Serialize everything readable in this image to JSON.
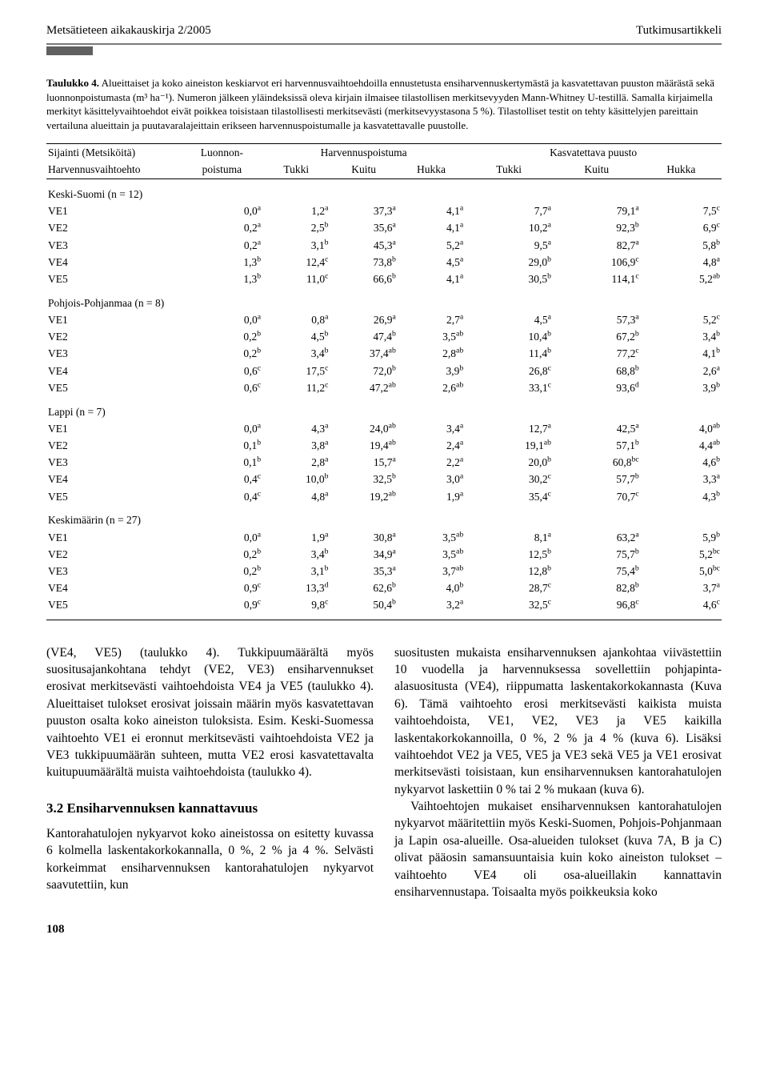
{
  "header": {
    "left": "Metsätieteen aikakauskirja 2/2005",
    "right": "Tutkimusartikkeli"
  },
  "caption": {
    "label": "Taulukko 4.",
    "text": "Alueittaiset ja koko aineiston keskiarvot eri harvennusvaihtoehdoilla ennustetusta ensiharvennuskertymästä ja kasvatettavan puuston määrästä sekä luonnonpoistumasta (m³ ha⁻¹). Numeron jälkeen yläindeksissä oleva kirjain ilmaisee tilastollisen merkitsevyyden Mann-Whitney U-testillä. Samalla kirjaimella merkityt käsittelyvaihtoehdot eivät poikkea toisistaan tilastollisesti merkitsevästi (merkitsevyystasona 5 %). Tilastolliset testit on tehty käsittelyjen pareittain vertailuna alueittain ja puutavaralajeittain erikseen harvennuspoistumalle ja kasvatettavalle puustolle."
  },
  "columns": {
    "h1a": "Sijainti (Metsiköitä)",
    "h1b": "Harvennusvaihtoehto",
    "h2a": "Luonnon-",
    "h2b": "poistuma",
    "group1": "Harvennuspoistuma",
    "group2": "Kasvatettava puusto",
    "sub1": "Tukki",
    "sub2": "Kuitu",
    "sub3": "Hukka",
    "sub4": "Tukki",
    "sub5": "Kuitu",
    "sub6": "Hukka"
  },
  "groups": [
    {
      "title": "Keski-Suomi (n = 12)",
      "rows": [
        {
          "ve": "VE1",
          "lp": [
            "0,0",
            "a"
          ],
          "c": [
            [
              "1,2",
              "a"
            ],
            [
              "37,3",
              "a"
            ],
            [
              "4,1",
              "a"
            ],
            [
              "7,7",
              "a"
            ],
            [
              "79,1",
              "a"
            ],
            [
              "7,5",
              "c"
            ]
          ]
        },
        {
          "ve": "VE2",
          "lp": [
            "0,2",
            "a"
          ],
          "c": [
            [
              "2,5",
              "b"
            ],
            [
              "35,6",
              "a"
            ],
            [
              "4,1",
              "a"
            ],
            [
              "10,2",
              "a"
            ],
            [
              "92,3",
              "b"
            ],
            [
              "6,9",
              "c"
            ]
          ]
        },
        {
          "ve": "VE3",
          "lp": [
            "0,2",
            "a"
          ],
          "c": [
            [
              "3,1",
              "b"
            ],
            [
              "45,3",
              "a"
            ],
            [
              "5,2",
              "a"
            ],
            [
              "9,5",
              "a"
            ],
            [
              "82,7",
              "a"
            ],
            [
              "5,8",
              "b"
            ]
          ]
        },
        {
          "ve": "VE4",
          "lp": [
            "1,3",
            "b"
          ],
          "c": [
            [
              "12,4",
              "c"
            ],
            [
              "73,8",
              "b"
            ],
            [
              "4,5",
              "a"
            ],
            [
              "29,0",
              "b"
            ],
            [
              "106,9",
              "c"
            ],
            [
              "4,8",
              "a"
            ]
          ]
        },
        {
          "ve": "VE5",
          "lp": [
            "1,3",
            "b"
          ],
          "c": [
            [
              "11,0",
              "c"
            ],
            [
              "66,6",
              "b"
            ],
            [
              "4,1",
              "a"
            ],
            [
              "30,5",
              "b"
            ],
            [
              "114,1",
              "c"
            ],
            [
              "5,2",
              "ab"
            ]
          ]
        }
      ]
    },
    {
      "title": "Pohjois-Pohjanmaa (n = 8)",
      "rows": [
        {
          "ve": "VE1",
          "lp": [
            "0,0",
            "a"
          ],
          "c": [
            [
              "0,8",
              "a"
            ],
            [
              "26,9",
              "a"
            ],
            [
              "2,7",
              "a"
            ],
            [
              "4,5",
              "a"
            ],
            [
              "57,3",
              "a"
            ],
            [
              "5,2",
              "c"
            ]
          ]
        },
        {
          "ve": "VE2",
          "lp": [
            "0,2",
            "b"
          ],
          "c": [
            [
              "4,5",
              "b"
            ],
            [
              "47,4",
              "b"
            ],
            [
              "3,5",
              "ab"
            ],
            [
              "10,4",
              "b"
            ],
            [
              "67,2",
              "b"
            ],
            [
              "3,4",
              "b"
            ]
          ]
        },
        {
          "ve": "VE3",
          "lp": [
            "0,2",
            "b"
          ],
          "c": [
            [
              "3,4",
              "b"
            ],
            [
              "37,4",
              "ab"
            ],
            [
              "2,8",
              "ab"
            ],
            [
              "11,4",
              "b"
            ],
            [
              "77,2",
              "c"
            ],
            [
              "4,1",
              "b"
            ]
          ]
        },
        {
          "ve": "VE4",
          "lp": [
            "0,6",
            "c"
          ],
          "c": [
            [
              "17,5",
              "c"
            ],
            [
              "72,0",
              "b"
            ],
            [
              "3,9",
              "b"
            ],
            [
              "26,8",
              "c"
            ],
            [
              "68,8",
              "b"
            ],
            [
              "2,6",
              "a"
            ]
          ]
        },
        {
          "ve": "VE5",
          "lp": [
            "0,6",
            "c"
          ],
          "c": [
            [
              "11,2",
              "c"
            ],
            [
              "47,2",
              "ab"
            ],
            [
              "2,6",
              "ab"
            ],
            [
              "33,1",
              "c"
            ],
            [
              "93,6",
              "d"
            ],
            [
              "3,9",
              "b"
            ]
          ]
        }
      ]
    },
    {
      "title": "Lappi (n = 7)",
      "rows": [
        {
          "ve": "VE1",
          "lp": [
            "0,0",
            "a"
          ],
          "c": [
            [
              "4,3",
              "a"
            ],
            [
              "24,0",
              "ab"
            ],
            [
              "3,4",
              "a"
            ],
            [
              "12,7",
              "a"
            ],
            [
              "42,5",
              "a"
            ],
            [
              "4,0",
              "ab"
            ]
          ]
        },
        {
          "ve": "VE2",
          "lp": [
            "0,1",
            "b"
          ],
          "c": [
            [
              "3,8",
              "a"
            ],
            [
              "19,4",
              "ab"
            ],
            [
              "2,4",
              "a"
            ],
            [
              "19,1",
              "ab"
            ],
            [
              "57,1",
              "b"
            ],
            [
              "4,4",
              "ab"
            ]
          ]
        },
        {
          "ve": "VE3",
          "lp": [
            "0,1",
            "b"
          ],
          "c": [
            [
              "2,8",
              "a"
            ],
            [
              "15,7",
              "a"
            ],
            [
              "2,2",
              "a"
            ],
            [
              "20,0",
              "b"
            ],
            [
              "60,8",
              "bc"
            ],
            [
              "4,6",
              "b"
            ]
          ]
        },
        {
          "ve": "VE4",
          "lp": [
            "0,4",
            "c"
          ],
          "c": [
            [
              "10,0",
              "b"
            ],
            [
              "32,5",
              "b"
            ],
            [
              "3,0",
              "a"
            ],
            [
              "30,2",
              "c"
            ],
            [
              "57,7",
              "b"
            ],
            [
              "3,3",
              "a"
            ]
          ]
        },
        {
          "ve": "VE5",
          "lp": [
            "0,4",
            "c"
          ],
          "c": [
            [
              "4,8",
              "a"
            ],
            [
              "19,2",
              "ab"
            ],
            [
              "1,9",
              "a"
            ],
            [
              "35,4",
              "c"
            ],
            [
              "70,7",
              "c"
            ],
            [
              "4,3",
              "b"
            ]
          ]
        }
      ]
    },
    {
      "title": "Keskimäärin (n = 27)",
      "rows": [
        {
          "ve": "VE1",
          "lp": [
            "0,0",
            "a"
          ],
          "c": [
            [
              "1,9",
              "a"
            ],
            [
              "30,8",
              "a"
            ],
            [
              "3,5",
              "ab"
            ],
            [
              "8,1",
              "a"
            ],
            [
              "63,2",
              "a"
            ],
            [
              "5,9",
              "b"
            ]
          ]
        },
        {
          "ve": "VE2",
          "lp": [
            "0,2",
            "b"
          ],
          "c": [
            [
              "3,4",
              "b"
            ],
            [
              "34,9",
              "a"
            ],
            [
              "3,5",
              "ab"
            ],
            [
              "12,5",
              "b"
            ],
            [
              "75,7",
              "b"
            ],
            [
              "5,2",
              "bc"
            ]
          ]
        },
        {
          "ve": "VE3",
          "lp": [
            "0,2",
            "b"
          ],
          "c": [
            [
              "3,1",
              "b"
            ],
            [
              "35,3",
              "a"
            ],
            [
              "3,7",
              "ab"
            ],
            [
              "12,8",
              "b"
            ],
            [
              "75,4",
              "b"
            ],
            [
              "5,0",
              "bc"
            ]
          ]
        },
        {
          "ve": "VE4",
          "lp": [
            "0,9",
            "c"
          ],
          "c": [
            [
              "13,3",
              "d"
            ],
            [
              "62,6",
              "b"
            ],
            [
              "4,0",
              "b"
            ],
            [
              "28,7",
              "c"
            ],
            [
              "82,8",
              "b"
            ],
            [
              "3,7",
              "a"
            ]
          ]
        },
        {
          "ve": "VE5",
          "lp": [
            "0,9",
            "c"
          ],
          "c": [
            [
              "9,8",
              "c"
            ],
            [
              "50,4",
              "b"
            ],
            [
              "3,2",
              "a"
            ],
            [
              "32,5",
              "c"
            ],
            [
              "96,8",
              "c"
            ],
            [
              "4,6",
              "c"
            ]
          ]
        }
      ]
    }
  ],
  "body": {
    "left": {
      "p1": "(VE4, VE5) (taulukko 4). Tukkipuumäärältä myös suositusajankohtana tehdyt (VE2, VE3) ensiharvennukset erosivat merkitsevästi vaihtoehdoista VE4 ja VE5 (taulukko 4). Alueittaiset tulokset erosivat joissain määrin myös kasvatettavan puuston osalta koko aineiston tuloksista. Esim. Keski-Suomessa vaihtoehto VE1 ei eronnut merkitsevästi vaihtoehdoista VE2 ja VE3 tukkipuumäärän suhteen, mutta VE2 erosi kasvatettavalta kuitupuumäärältä muista vaihtoehdoista (taulukko 4).",
      "h": "3.2 Ensiharvennuksen kannattavuus",
      "p2": "Kantorahatulojen nykyarvot koko aineistossa on esitetty kuvassa 6 kolmella laskentakorkokannalla, 0 %, 2 % ja 4 %. Selvästi korkeimmat ensiharvennuksen kantorahatulojen nykyarvot saavutettiin, kun"
    },
    "right": {
      "p1": "suositusten mukaista ensiharvennuksen ajankohtaa viivästettiin 10 vuodella ja harvennuksessa sovellettiin pohjapinta-alasuositusta (VE4), riippumatta laskentakorkokannasta (Kuva 6). Tämä vaihtoehto erosi merkitsevästi kaikista muista vaihtoehdoista, VE1, VE2, VE3 ja VE5 kaikilla laskentakorkokannoilla, 0 %, 2 % ja 4 % (kuva 6). Lisäksi vaihtoehdot VE2 ja VE5, VE5 ja VE3 sekä VE5 ja VE1 erosivat merkitsevästi toisistaan, kun ensiharvennuksen kantorahatulojen nykyarvot laskettiin 0 % tai 2 % mukaan (kuva 6).",
      "p2": "Vaihtoehtojen mukaiset ensiharvennuksen kantorahatulojen nykyarvot määritettiin myös Keski-Suomen, Pohjois-Pohjanmaan ja Lapin osa-alueille. Osa-alueiden tulokset (kuva 7A, B ja C) olivat pääosin samansuuntaisia kuin koko aineiston tulokset – vaihtoehto VE4 oli osa-alueillakin kannattavin ensiharvennustapa. Toisaalta myös poikkeuksia koko"
    }
  },
  "pageNumber": "108"
}
